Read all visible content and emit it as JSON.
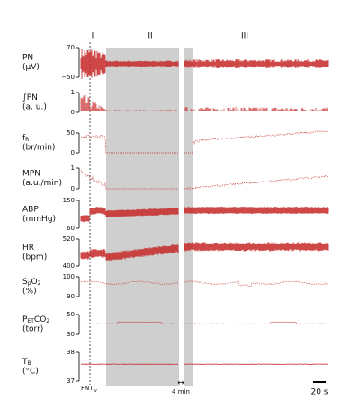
{
  "phases": [
    "I",
    "II",
    "III"
  ],
  "panels": [
    {
      "name": [
        "PN"
      ],
      "unit": "(µV)",
      "ylim": [
        -50,
        70
      ],
      "yticks": [
        70,
        {
          "value": -50,
          "label": "−50"
        }
      ]
    },
    {
      "name": [
        "∫PN"
      ],
      "unit": "(a. u.)",
      "ylim": [
        0,
        1
      ],
      "yticks": [
        1,
        0
      ]
    },
    {
      "name": [
        "f",
        "R"
      ],
      "unit": "(br/min)",
      "ylim": [
        0,
        50
      ],
      "yticks": [
        50,
        0
      ]
    },
    {
      "name": [
        "MPN"
      ],
      "unit": "(a.u./min)",
      "ylim": [
        0,
        1
      ],
      "yticks": [
        1,
        0
      ]
    },
    {
      "name": [
        "ABP"
      ],
      "unit": "(mmHg)",
      "ylim": [
        60,
        150
      ],
      "yticks": [
        150,
        60
      ]
    },
    {
      "name": [
        "HR"
      ],
      "unit": "(bpm)",
      "ylim": [
        400,
        520
      ],
      "yticks": [
        520,
        400
      ]
    },
    {
      "name": [
        "S",
        "p",
        "O",
        "2"
      ],
      "unit": "(%)",
      "ylim": [
        90,
        100
      ],
      "yticks": [
        100,
        90
      ]
    },
    {
      "name": [
        "P",
        "ET",
        "CO",
        "2"
      ],
      "unit": "(torr)",
      "ylim": [
        30,
        50
      ],
      "yticks": [
        50,
        30
      ]
    },
    {
      "name": [
        "T",
        "B"
      ],
      "unit": "(°C)",
      "ylim": [
        37,
        38
      ],
      "yticks": [
        38,
        37
      ]
    }
  ],
  "event": [
    "FNT",
    "iv"
  ],
  "break_label": "4 min",
  "scale_label": "20 s"
}
